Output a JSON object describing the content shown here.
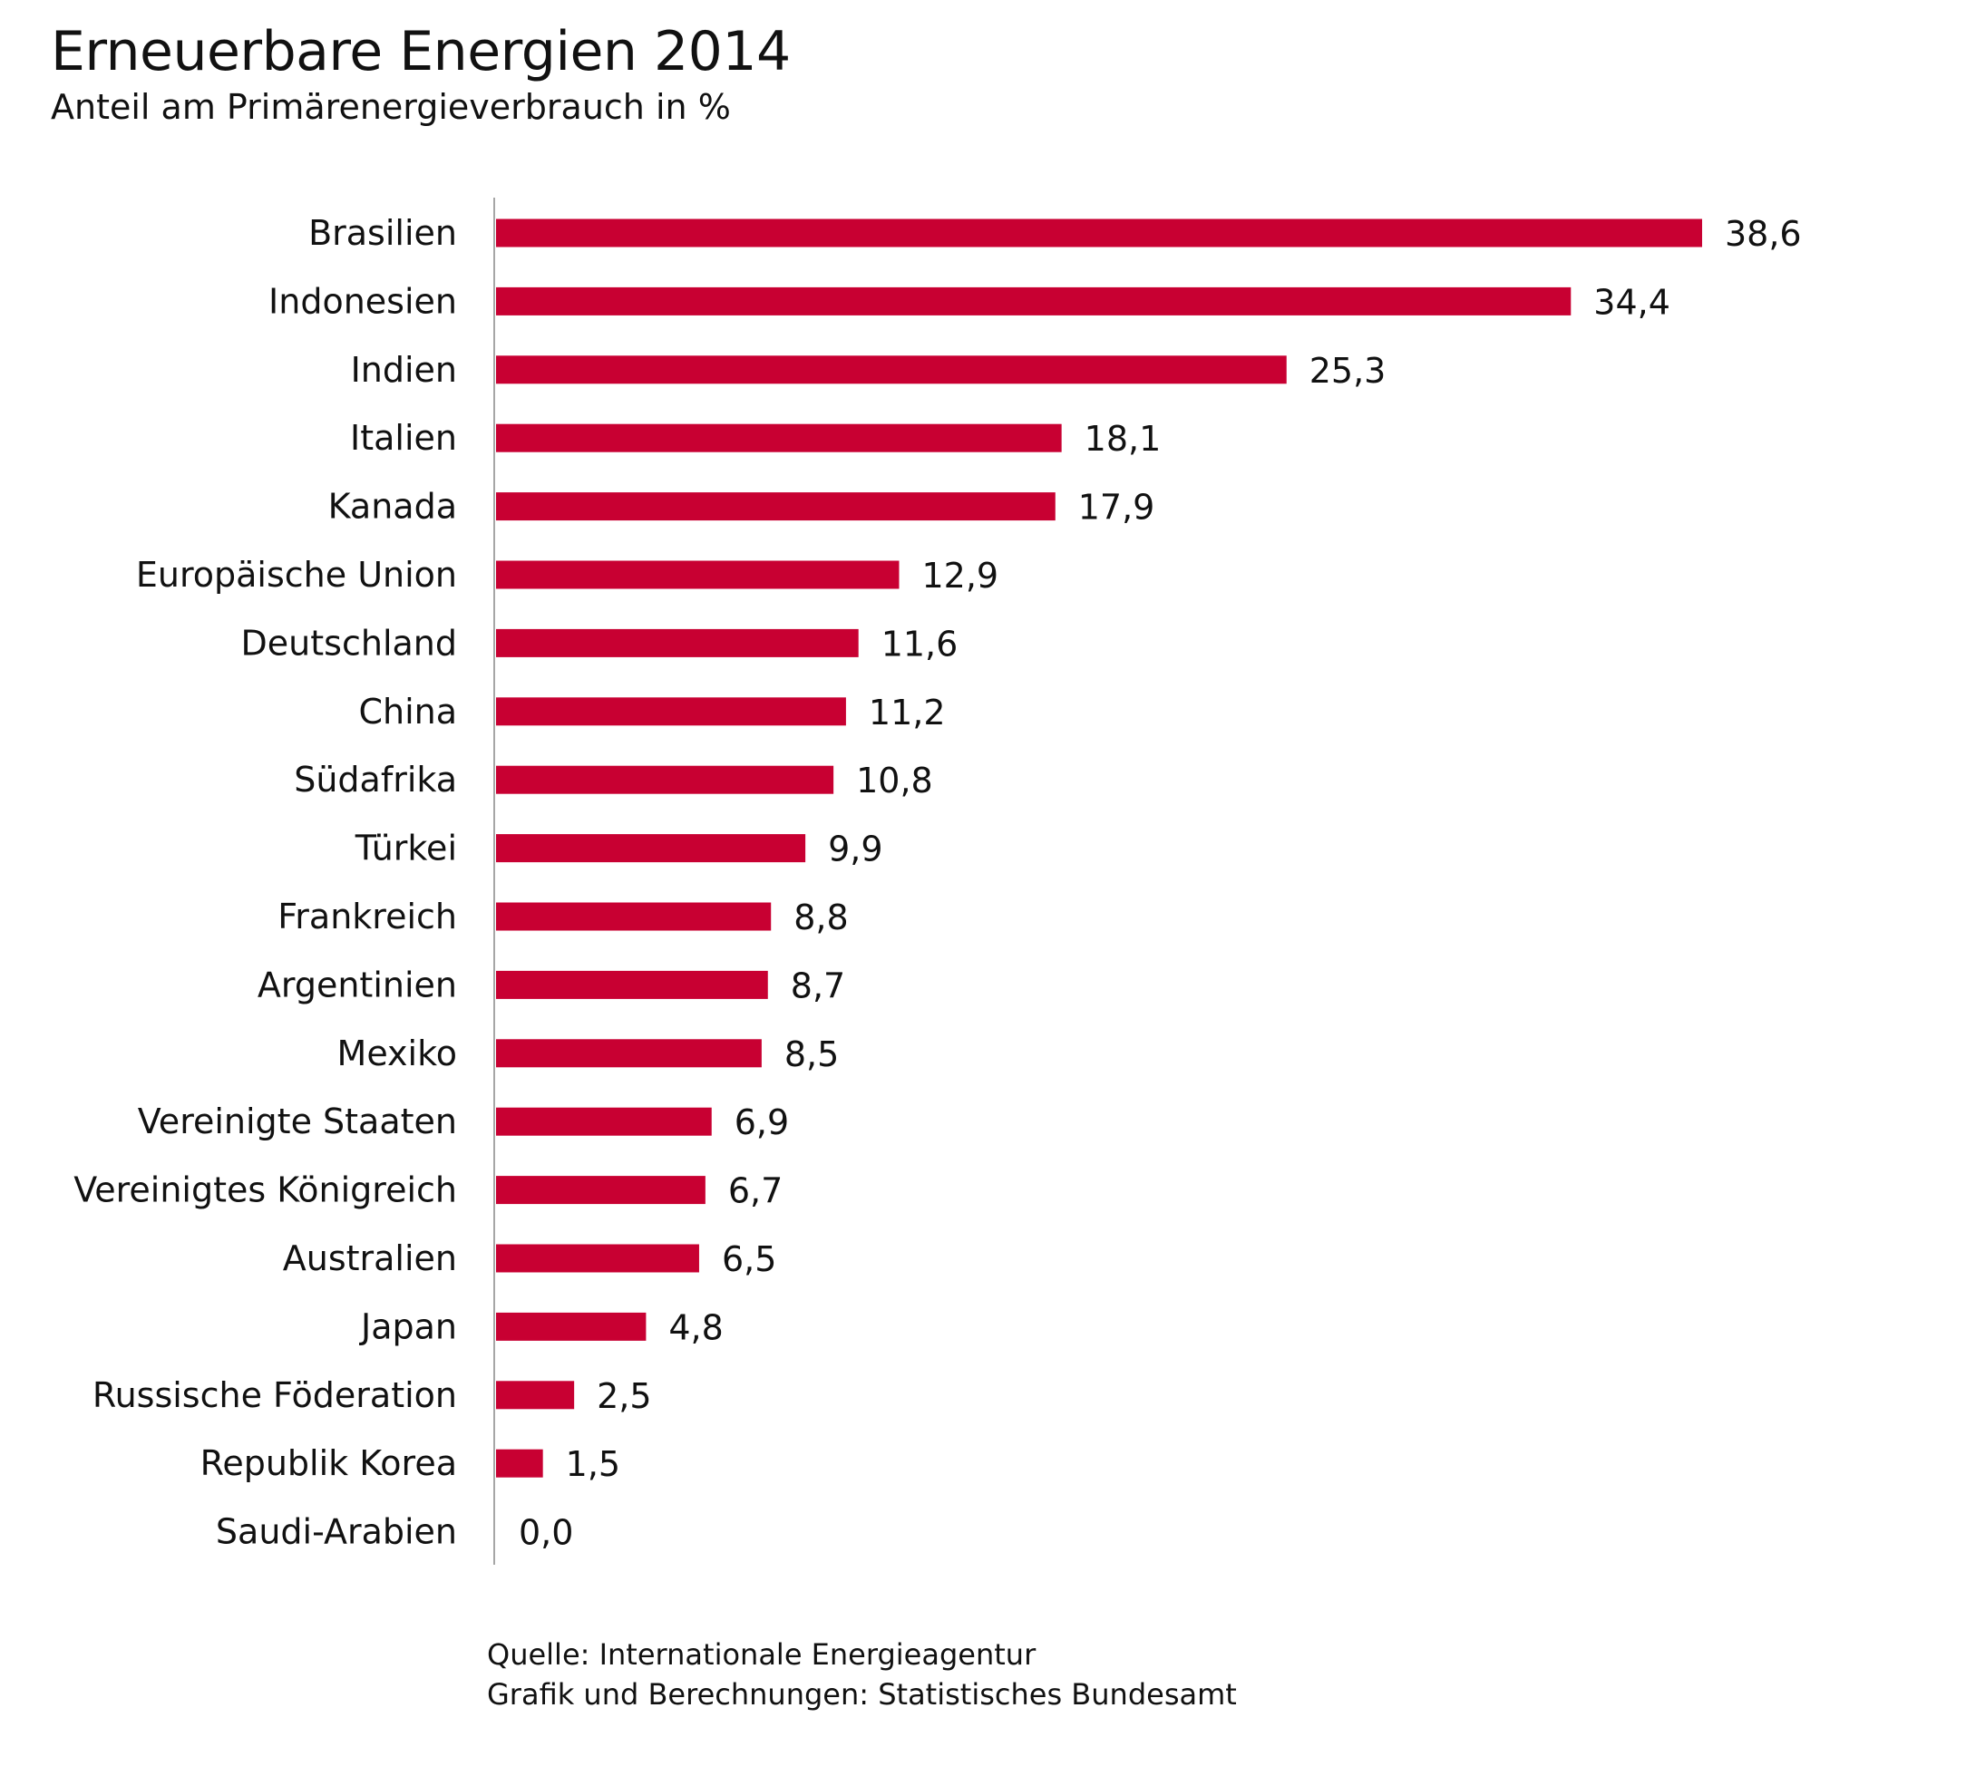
{
  "chart_data": {
    "type": "bar",
    "orientation": "horizontal",
    "title": "Erneuerbare Energien 2014",
    "subtitle": "Anteil am Primärenergieverbrauch in %",
    "xlabel": "",
    "ylabel": "",
    "xlim": [
      0,
      38.6
    ],
    "grid": false,
    "legend": "none",
    "categories": [
      "Brasilien",
      "Indonesien",
      "Indien",
      "Italien",
      "Kanada",
      "Europäische Union",
      "Deutschland",
      "China",
      "Südafrika",
      "Türkei",
      "Frankreich",
      "Argentinien",
      "Mexiko",
      "Vereinigte Staaten",
      "Vereinigtes Königreich",
      "Australien",
      "Japan",
      "Russische Föderation",
      "Republik Korea",
      "Saudi-Arabien"
    ],
    "values": [
      38.6,
      34.4,
      25.3,
      18.1,
      17.9,
      12.9,
      11.6,
      11.2,
      10.8,
      9.9,
      8.8,
      8.7,
      8.5,
      6.9,
      6.7,
      6.5,
      4.8,
      2.5,
      1.5,
      0.0
    ],
    "value_labels": [
      "38,6",
      "34,4",
      "25,3",
      "18,1",
      "17,9",
      "12,9",
      "11,6",
      "11,2",
      "10,8",
      "9,9",
      "8,8",
      "8,7",
      "8,5",
      "6,9",
      "6,7",
      "6,5",
      "4,8",
      "2,5",
      "1,5",
      "0,0"
    ]
  },
  "source": {
    "line1": "Quelle: Internationale Energieagentur",
    "line2": "Grafik und Berechnungen: Statistisches Bundesamt"
  },
  "colors": {
    "bar": "#c80032",
    "axis": "#a6a6a6",
    "text": "#111111"
  }
}
